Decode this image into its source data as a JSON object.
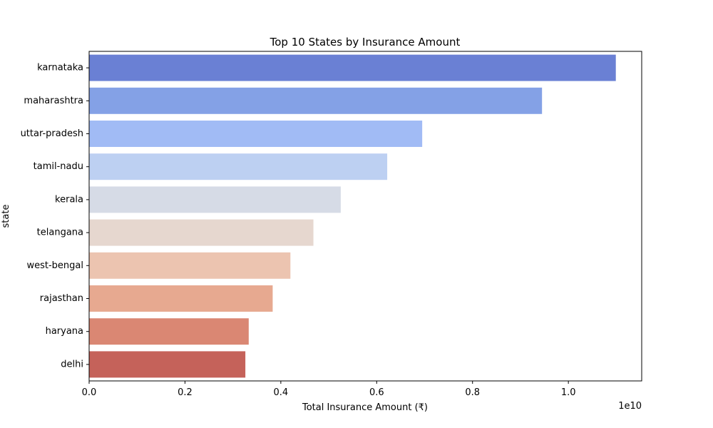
{
  "chart_data": {
    "type": "bar",
    "orientation": "horizontal",
    "title": "Top 10 States by Insurance Amount",
    "xlabel": "Total Insurance Amount (₹)",
    "ylabel": "state",
    "x_scale_label": "1e10",
    "xlim": [
      0,
      11530000000.0
    ],
    "x_ticks": [
      0,
      2000000000,
      4000000000,
      6000000000,
      8000000000,
      10000000000
    ],
    "x_tick_labels": [
      "0.0",
      "0.2",
      "0.4",
      "0.6",
      "0.8",
      "1.0"
    ],
    "grid": false,
    "legend": false,
    "categories": [
      "karnataka",
      "maharashtra",
      "uttar-pradesh",
      "tamil-nadu",
      "kerala",
      "telangana",
      "west-bengal",
      "rajasthan",
      "haryana",
      "delhi"
    ],
    "values": [
      10990000000,
      9450000000,
      6950000000,
      6220000000,
      5250000000,
      4680000000,
      4200000000,
      3830000000,
      3330000000,
      3260000000
    ],
    "colors": [
      "#6a80d4",
      "#84a1e6",
      "#a1bbf5",
      "#bdd0f2",
      "#d6dbe6",
      "#e6d7cf",
      "#ecc4b0",
      "#e7a990",
      "#da8773",
      "#c5625a"
    ]
  }
}
